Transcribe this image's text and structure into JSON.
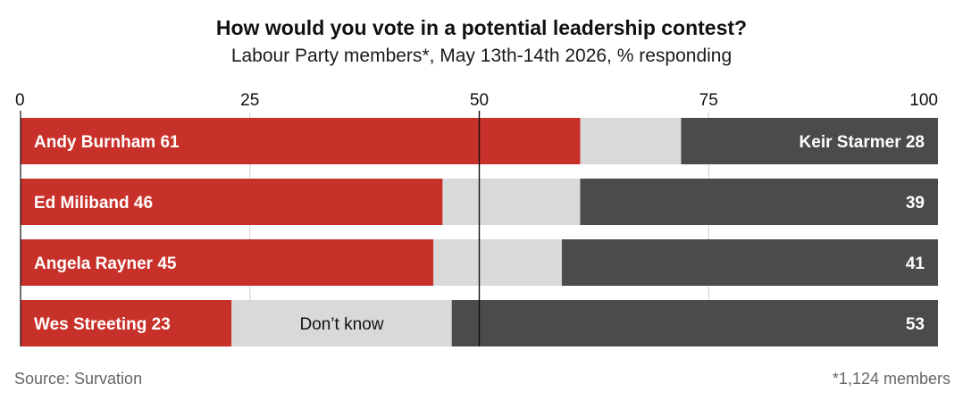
{
  "title": "How would you vote in a potential leadership contest?",
  "subtitle": "Labour Party members*, May 13th-14th 2026, % responding",
  "source": "Source: Survation",
  "footnote": "*1,124 members",
  "colors": {
    "candidate": "#c8312a",
    "dont_know": "#d9d9d9",
    "starmer": "#4b4b4b",
    "reference_line": "#111111",
    "gridline": "#d0d0d0"
  },
  "chart_data": {
    "type": "bar",
    "orientation": "horizontal",
    "stacked": true,
    "xlim": [
      0,
      100
    ],
    "reference_line": 50,
    "ticks": [
      "0",
      "25",
      "50",
      "75",
      "100"
    ],
    "rows": [
      {
        "label": "Andy Burnham 61",
        "right_label": "Keir Starmer 28",
        "candidate": 61,
        "dont_know": 11,
        "starmer": 28
      },
      {
        "label": "Ed Miliband 46",
        "right_label": "39",
        "candidate": 46,
        "dont_know": 15,
        "starmer": 39
      },
      {
        "label": "Angela Rayner 45",
        "right_label": "41",
        "candidate": 45,
        "dont_know": 14,
        "starmer": 41
      },
      {
        "label": "Wes Streeting 23",
        "right_label": "53",
        "candidate": 23,
        "dont_know": 24,
        "starmer": 53,
        "middle_label": "Don’t know"
      }
    ]
  }
}
